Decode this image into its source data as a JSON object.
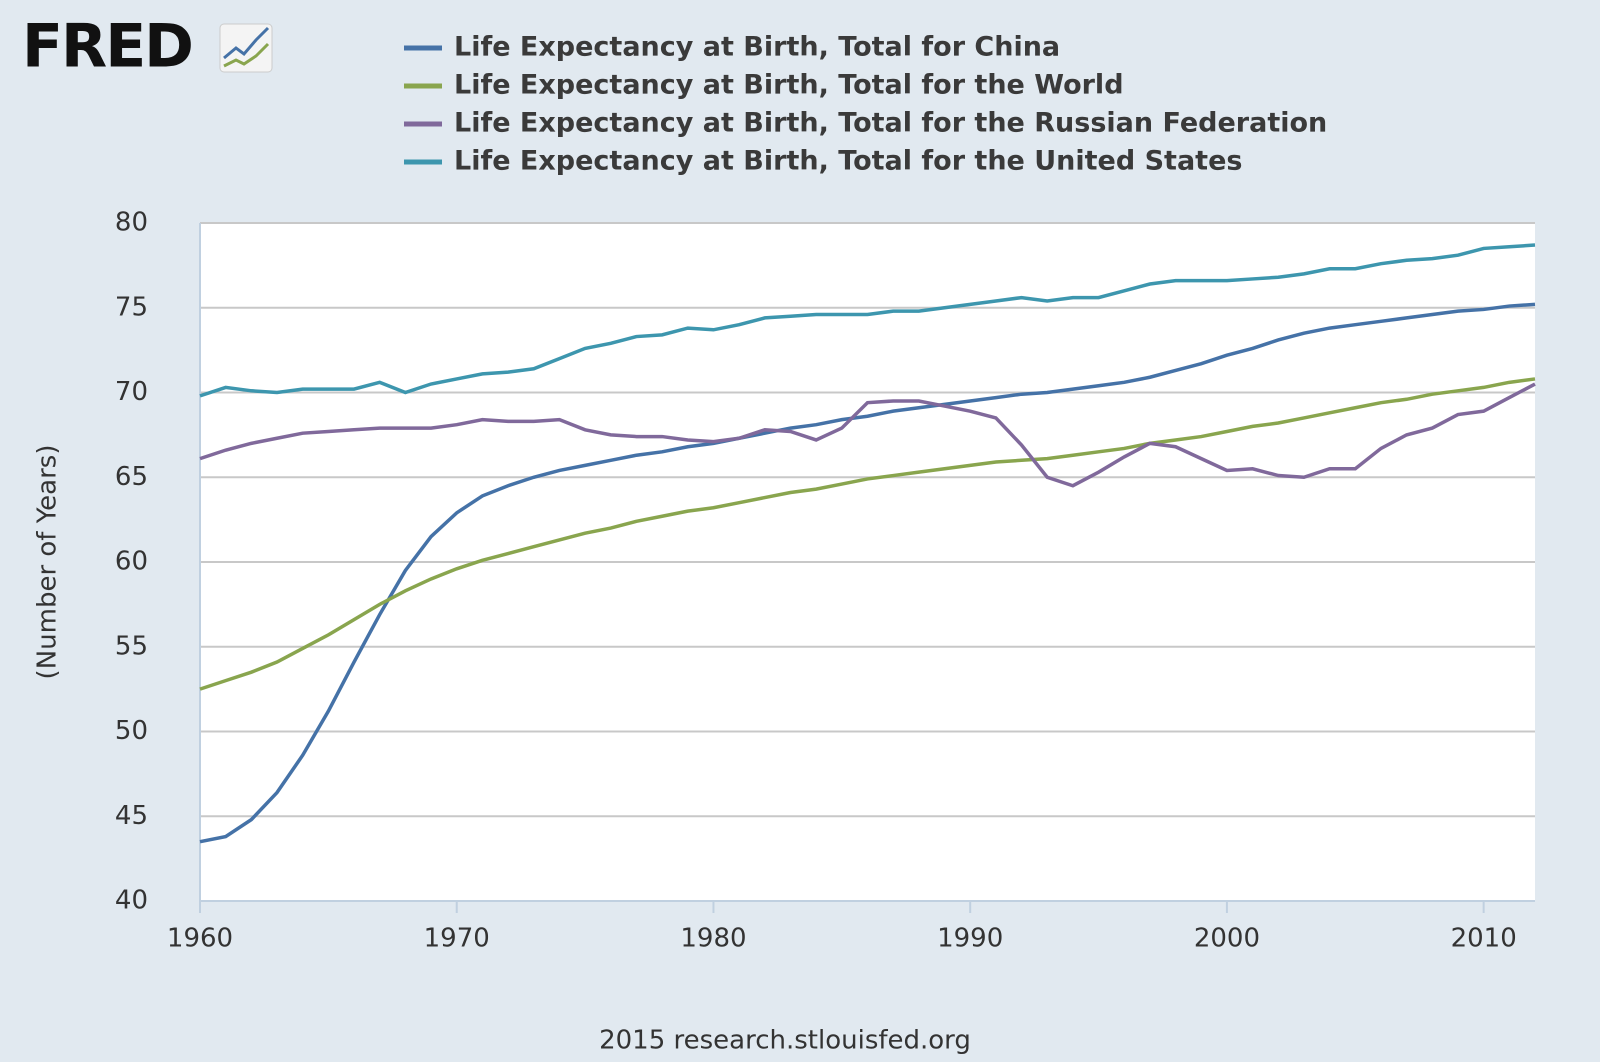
{
  "chart_data": {
    "type": "line",
    "logo": "FRED",
    "source": "2015 research.stlouisfed.org",
    "ylabel": "(Number of Years)",
    "x": [
      1960,
      1961,
      1962,
      1963,
      1964,
      1965,
      1966,
      1967,
      1968,
      1969,
      1970,
      1971,
      1972,
      1973,
      1974,
      1975,
      1976,
      1977,
      1978,
      1979,
      1980,
      1981,
      1982,
      1983,
      1984,
      1985,
      1986,
      1987,
      1988,
      1989,
      1990,
      1991,
      1992,
      1993,
      1994,
      1995,
      1996,
      1997,
      1998,
      1999,
      2000,
      2001,
      2002,
      2003,
      2004,
      2005,
      2006,
      2007,
      2008,
      2009,
      2010,
      2011,
      2012
    ],
    "xlim": [
      1960,
      2012
    ],
    "xticks": [
      1960,
      1970,
      1980,
      1990,
      2000,
      2010
    ],
    "ylim": [
      40,
      80
    ],
    "yticks": [
      40,
      45,
      50,
      55,
      60,
      65,
      70,
      75,
      80
    ],
    "grid": true,
    "series": [
      {
        "name": "Life Expectancy at Birth, Total for China",
        "color": "#4572a7",
        "values": [
          43.5,
          43.8,
          44.8,
          46.4,
          48.6,
          51.2,
          54.1,
          56.9,
          59.5,
          61.5,
          62.9,
          63.9,
          64.5,
          65.0,
          65.4,
          65.7,
          66.0,
          66.3,
          66.5,
          66.8,
          67.0,
          67.3,
          67.6,
          67.9,
          68.1,
          68.4,
          68.6,
          68.9,
          69.1,
          69.3,
          69.5,
          69.7,
          69.9,
          70.0,
          70.2,
          70.4,
          70.6,
          70.9,
          71.3,
          71.7,
          72.2,
          72.6,
          73.1,
          73.5,
          73.8,
          74.0,
          74.2,
          74.4,
          74.6,
          74.8,
          74.9,
          75.1,
          75.2
        ]
      },
      {
        "name": "Life Expectancy at Birth, Total for the World",
        "color": "#89a54e",
        "values": [
          52.5,
          53.0,
          53.5,
          54.1,
          54.9,
          55.7,
          56.6,
          57.5,
          58.3,
          59.0,
          59.6,
          60.1,
          60.5,
          60.9,
          61.3,
          61.7,
          62.0,
          62.4,
          62.7,
          63.0,
          63.2,
          63.5,
          63.8,
          64.1,
          64.3,
          64.6,
          64.9,
          65.1,
          65.3,
          65.5,
          65.7,
          65.9,
          66.0,
          66.1,
          66.3,
          66.5,
          66.7,
          67.0,
          67.2,
          67.4,
          67.7,
          68.0,
          68.2,
          68.5,
          68.8,
          69.1,
          69.4,
          69.6,
          69.9,
          70.1,
          70.3,
          70.6,
          70.8
        ]
      },
      {
        "name": "Life Expectancy at Birth, Total for the Russian Federation",
        "color": "#80699b",
        "values": [
          66.1,
          66.6,
          67.0,
          67.3,
          67.6,
          67.7,
          67.8,
          67.9,
          67.9,
          67.9,
          68.1,
          68.4,
          68.3,
          68.3,
          68.4,
          67.8,
          67.5,
          67.4,
          67.4,
          67.2,
          67.1,
          67.3,
          67.8,
          67.7,
          67.2,
          67.9,
          69.4,
          69.5,
          69.5,
          69.2,
          68.9,
          68.5,
          66.9,
          65.0,
          64.5,
          65.3,
          66.2,
          67.0,
          66.8,
          66.1,
          65.4,
          65.5,
          65.1,
          65.0,
          65.5,
          65.5,
          66.7,
          67.5,
          67.9,
          68.7,
          68.9,
          69.7,
          70.5
        ]
      },
      {
        "name": "Life Expectancy at Birth, Total for the United States",
        "color": "#3d96ae",
        "values": [
          69.8,
          70.3,
          70.1,
          70.0,
          70.2,
          70.2,
          70.2,
          70.6,
          70.0,
          70.5,
          70.8,
          71.1,
          71.2,
          71.4,
          72.0,
          72.6,
          72.9,
          73.3,
          73.4,
          73.8,
          73.7,
          74.0,
          74.4,
          74.5,
          74.6,
          74.6,
          74.6,
          74.8,
          74.8,
          75.0,
          75.2,
          75.4,
          75.6,
          75.4,
          75.6,
          75.6,
          76.0,
          76.4,
          76.6,
          76.6,
          76.6,
          76.7,
          76.8,
          77.0,
          77.3,
          77.3,
          77.6,
          77.8,
          77.9,
          78.1,
          78.5,
          78.6,
          78.7
        ]
      }
    ]
  }
}
